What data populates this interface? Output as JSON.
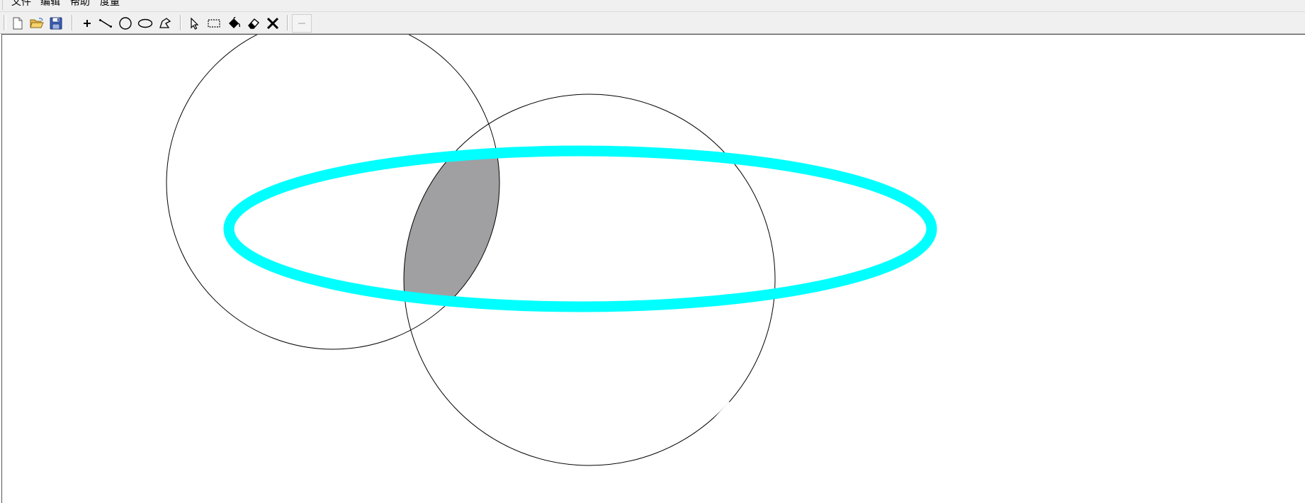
{
  "menu": {
    "items": [
      "文件",
      "编辑",
      "帮助",
      "度量"
    ]
  },
  "toolbar": {
    "groups": [
      [
        "new-file-icon",
        "open-folder-icon",
        "save-disk-icon"
      ],
      [
        "point-tool-icon",
        "line-tool-icon",
        "circle-tool-icon",
        "ellipse-tool-icon",
        "polygon-tool-icon"
      ],
      [
        "select-arrow-icon",
        "rect-select-icon",
        "fill-bucket-icon",
        "eraser-icon",
        "delete-x-icon"
      ],
      [
        "line-width-icon"
      ]
    ]
  },
  "canvas": {
    "background": "#ffffff",
    "stroke_color": "#000000",
    "ellipse_color": "#00ffff",
    "fill_color": "#a0a0a3"
  }
}
